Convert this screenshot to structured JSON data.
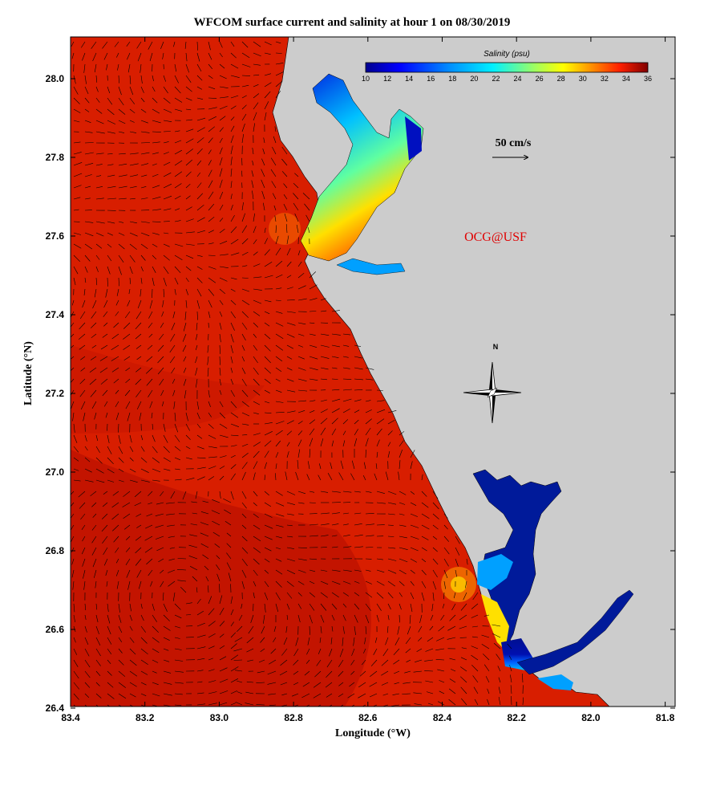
{
  "title": "WFCOM surface current and salinity at hour 1 on 08/30/2019",
  "x_axis": {
    "label": "Longitude (°W)",
    "ticks": [
      "83.4",
      "83.2",
      "83.0",
      "82.8",
      "82.6",
      "82.4",
      "82.2",
      "82.0",
      "81.8"
    ]
  },
  "y_axis": {
    "label": "Latitude (°N)",
    "ticks": [
      "28.0",
      "27.8",
      "27.6",
      "27.4",
      "27.2",
      "27.0",
      "26.8",
      "26.6",
      "26.4"
    ]
  },
  "colorbar": {
    "title": "Salinity (psu)",
    "labels": [
      "10",
      "12",
      "14",
      "16",
      "18",
      "20",
      "22",
      "24",
      "26",
      "28",
      "30",
      "32",
      "34",
      "36"
    ],
    "colors": [
      "#00008f",
      "#0000d0",
      "#0040ff",
      "#0080ff",
      "#00b0ff",
      "#00e0ff",
      "#40ffc0",
      "#90ff70",
      "#e0ff20",
      "#ffd000",
      "#ff9000",
      "#ff5000",
      "#e01000",
      "#a00000"
    ]
  },
  "scale_label": "50 cm/s",
  "credit": "OCG@USF",
  "compass_label": "N",
  "colors": {
    "sea": "#d81e00",
    "sea_dark": "#c31400",
    "land": "#cccccc",
    "fresh": "#001a9a",
    "credit": "#e00000"
  }
}
